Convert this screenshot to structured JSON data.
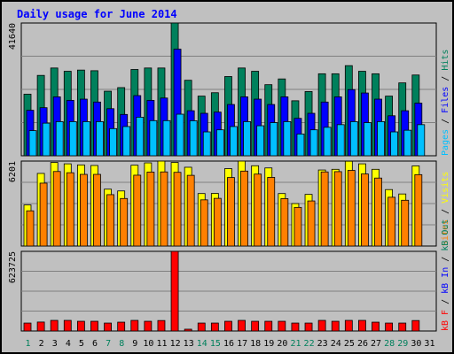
{
  "chart_data": {
    "type": "bar",
    "title": "Daily usage for June 2014",
    "categories": [
      "1",
      "2",
      "3",
      "4",
      "5",
      "6",
      "7",
      "8",
      "9",
      "10",
      "11",
      "12",
      "13",
      "14",
      "15",
      "16",
      "17",
      "18",
      "19",
      "20",
      "21",
      "22",
      "23",
      "24",
      "25",
      "26",
      "27",
      "28",
      "29",
      "30",
      "31"
    ],
    "weekend_days": [
      "1",
      "7",
      "8",
      "14",
      "15",
      "21",
      "22",
      "28",
      "29"
    ],
    "panels": [
      {
        "id": "top",
        "ymax_label": "41640",
        "ymax": 41640,
        "series": [
          {
            "name": "Hits",
            "color": "#00805c",
            "values": [
              19330,
              25210,
              27530,
              26500,
              26880,
              26680,
              20250,
              21380,
              27070,
              27530,
              27530,
              41640,
              23680,
              18710,
              19780,
              24850,
              27530,
              26500,
              22300,
              24100,
              17250,
              20140,
              25720,
              25720,
              28270,
              26500,
              25720,
              18710,
              22860,
              25330,
              null
            ]
          },
          {
            "name": "Files",
            "color": "#0000ff",
            "values": [
              14270,
              15080,
              18480,
              17380,
              17760,
              16850,
              14770,
              12960,
              18870,
              17380,
              18110,
              33440,
              14130,
              13320,
              13700,
              16080,
              18480,
              17760,
              16080,
              18480,
              11740,
              13320,
              16850,
              18480,
              20760,
              19690,
              17760,
              12550,
              14130,
              16510,
              null
            ]
          },
          {
            "name": "Pages",
            "color": "#00c0ff",
            "values": [
              7880,
              10230,
              10710,
              10710,
              10710,
              10710,
              8520,
              9170,
              12100,
              11020,
              11020,
              13040,
              10990,
              7490,
              8140,
              9170,
              10710,
              9420,
              10390,
              10710,
              6830,
              8140,
              8930,
              9760,
              10710,
              10390,
              10710,
              7490,
              8010,
              9760,
              null
            ]
          }
        ]
      },
      {
        "id": "middle",
        "ymax_label": "6201",
        "ymax": 6201,
        "series": [
          {
            "name": "Visits",
            "color": "#ffff00",
            "values": [
              3000,
              5300,
              6100,
              6000,
              5920,
              5880,
              4150,
              4020,
              5900,
              6070,
              6200,
              6100,
              5750,
              3830,
              3840,
              5650,
              6200,
              5860,
              5700,
              3830,
              3100,
              3770,
              5550,
              5600,
              6190,
              6000,
              5600,
              4120,
              3800,
              5850,
              null
            ]
          },
          {
            "name": "Sites",
            "color": "#ff8000",
            "values": [
              2570,
              4590,
              5440,
              5350,
              5230,
              5230,
              3750,
              3470,
              5170,
              5400,
              5410,
              5380,
              5160,
              3370,
              3480,
              5000,
              5470,
              5250,
              5010,
              3460,
              2820,
              3290,
              5410,
              5430,
              5520,
              5260,
              4960,
              3560,
              3340,
              5210,
              null
            ]
          }
        ]
      },
      {
        "id": "bottom",
        "ymax_label": "623725",
        "ymax": 623725,
        "series": [
          {
            "name": "KBytes",
            "color": "#ff0000",
            "values": [
              62000,
              70000,
              83000,
              83000,
              76000,
              76000,
              62000,
              69000,
              83000,
              76000,
              82000,
              623725,
              14000,
              62000,
              62000,
              76000,
              83000,
              76000,
              76000,
              76000,
              62000,
              62000,
              83000,
              76000,
              83000,
              83000,
              69000,
              62000,
              62000,
              82000,
              null
            ]
          }
        ]
      }
    ],
    "right_labels": {
      "top": [
        {
          "text": "Pages",
          "color": "#00c0ff"
        },
        {
          "text": " / ",
          "color": "#000000"
        },
        {
          "text": "Files",
          "color": "#0000ff"
        },
        {
          "text": " / ",
          "color": "#000000"
        },
        {
          "text": "Hits",
          "color": "#00805c"
        }
      ],
      "middle": [
        {
          "text": "Sites",
          "color": "#ff8000"
        },
        {
          "text": " / ",
          "color": "#000000"
        },
        {
          "text": "Visits",
          "color": "#ffff00"
        }
      ],
      "bottom": [
        {
          "text": "kB F",
          "color": "#ff0000"
        },
        {
          "text": " / ",
          "color": "#000000"
        },
        {
          "text": "kB In",
          "color": "#0000ff"
        },
        {
          "text": " / ",
          "color": "#000000"
        },
        {
          "text": "kB Out",
          "color": "#00805c"
        }
      ]
    },
    "colors": {
      "background": "#c0c0c0",
      "title": "#0000ff",
      "weekday_label": "#000000",
      "weekend_label": "#00805c"
    }
  }
}
